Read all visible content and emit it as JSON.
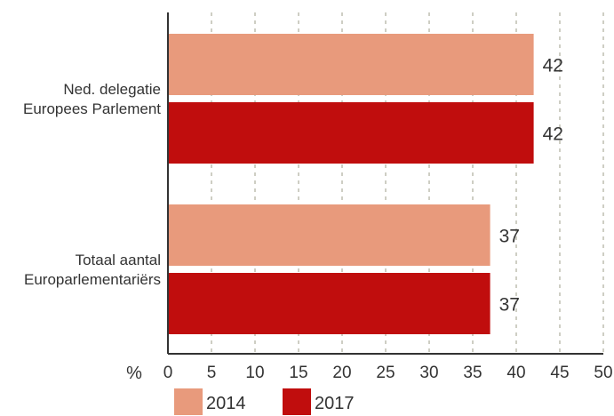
{
  "chart_data": {
    "type": "bar",
    "orientation": "horizontal",
    "categories": [
      "Ned. delegatie\nEuropees Parlement",
      "Totaal aantal\nEuroparlementariërs"
    ],
    "series": [
      {
        "name": "2014",
        "color": "#E89A7C",
        "values": [
          42,
          37
        ]
      },
      {
        "name": "2017",
        "color": "#C00D0D",
        "values": [
          42,
          37
        ]
      }
    ],
    "xlim": [
      0,
      50
    ],
    "xticks": [
      0,
      5,
      10,
      15,
      20,
      25,
      30,
      35,
      40,
      45,
      50
    ],
    "xlabel": "%",
    "grid": "vertical-dashed",
    "legend": "bottom"
  }
}
